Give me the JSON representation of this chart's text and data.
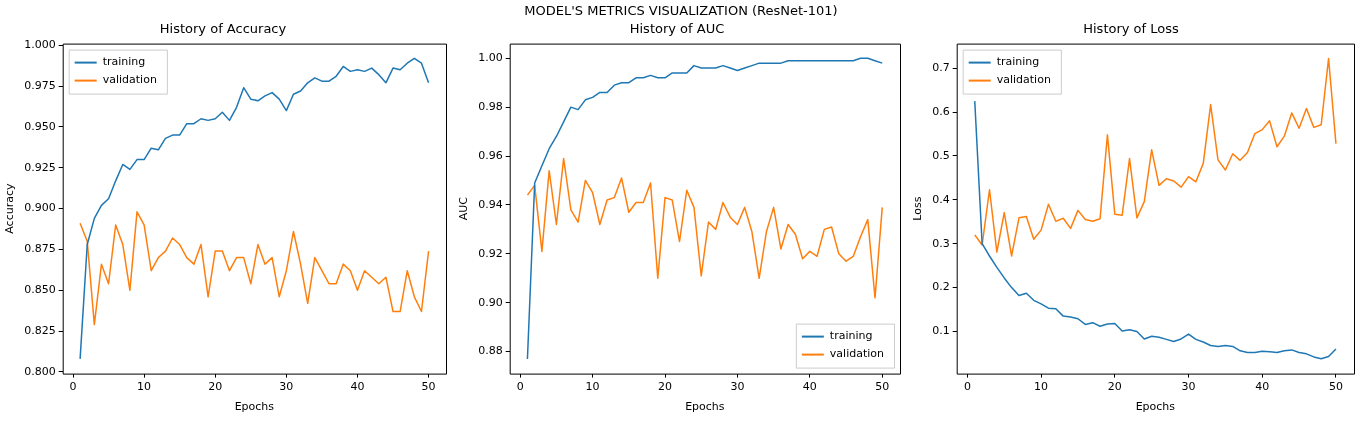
{
  "chart_data": [
    {
      "type": "line",
      "title": "History of Accuracy",
      "xlabel": "Epochs",
      "ylabel": "Accuracy",
      "annotations": [
        "MODEL'S METRICS VISUALIZATION (ResNet-101)"
      ],
      "legend": "top left",
      "grid": false,
      "x": [
        1,
        2,
        3,
        4,
        5,
        6,
        7,
        8,
        9,
        10,
        11,
        12,
        13,
        14,
        15,
        16,
        17,
        18,
        19,
        20,
        21,
        22,
        23,
        24,
        25,
        26,
        27,
        28,
        29,
        30,
        31,
        32,
        33,
        34,
        35,
        36,
        37,
        38,
        39,
        40,
        41,
        42,
        43,
        44,
        45,
        46,
        47,
        48,
        49,
        50
      ],
      "xlim": [
        -1.45,
        52.45
      ],
      "xticks": [
        0,
        10,
        20,
        30,
        40,
        50
      ],
      "ylim": [
        0.799,
        1.001
      ],
      "yticks": [
        {
          "value": 0.8,
          "label": "0.800"
        },
        {
          "value": 0.825,
          "label": "0.825"
        },
        {
          "value": 0.85,
          "label": "0.850"
        },
        {
          "value": 0.875,
          "label": "0.875"
        },
        {
          "value": 0.9,
          "label": "0.900"
        },
        {
          "value": 0.925,
          "label": "0.925"
        },
        {
          "value": 0.95,
          "label": "0.950"
        },
        {
          "value": 0.975,
          "label": "0.975"
        },
        {
          "value": 1.0,
          "label": "1.000"
        }
      ],
      "series": [
        {
          "name": "training",
          "color": "#1f77b4",
          "values": [
            0.808,
            0.878,
            0.894,
            0.902,
            0.906,
            0.917,
            0.927,
            0.924,
            0.93,
            0.93,
            0.937,
            0.936,
            0.943,
            0.945,
            0.945,
            0.952,
            0.952,
            0.955,
            0.954,
            0.955,
            0.959,
            0.954,
            0.962,
            0.974,
            0.967,
            0.966,
            0.969,
            0.971,
            0.967,
            0.96,
            0.97,
            0.972,
            0.977,
            0.98,
            0.978,
            0.978,
            0.981,
            0.987,
            0.984,
            0.985,
            0.984,
            0.986,
            0.982,
            0.977,
            0.986,
            0.985,
            0.989,
            0.992,
            0.989,
            0.977
          ]
        },
        {
          "name": "validation",
          "color": "#ff7f0e",
          "values": [
            0.891,
            0.88,
            0.829,
            0.866,
            0.854,
            0.89,
            0.878,
            0.85,
            0.898,
            0.89,
            0.862,
            0.87,
            0.874,
            0.882,
            0.878,
            0.87,
            0.866,
            0.878,
            0.846,
            0.874,
            0.874,
            0.862,
            0.87,
            0.87,
            0.854,
            0.878,
            0.866,
            0.87,
            0.846,
            0.862,
            0.886,
            0.866,
            0.842,
            0.87,
            0.862,
            0.854,
            0.854,
            0.866,
            0.862,
            0.85,
            0.862,
            0.858,
            0.854,
            0.858,
            0.837,
            0.837,
            0.862,
            0.846,
            0.837,
            0.874
          ]
        }
      ]
    },
    {
      "type": "line",
      "title": "History of AUC",
      "xlabel": "Epochs",
      "ylabel": "AUC",
      "legend": "bottom right",
      "grid": false,
      "x": [
        1,
        2,
        3,
        4,
        5,
        6,
        7,
        8,
        9,
        10,
        11,
        12,
        13,
        14,
        15,
        16,
        17,
        18,
        19,
        20,
        21,
        22,
        23,
        24,
        25,
        26,
        27,
        28,
        29,
        30,
        31,
        32,
        33,
        34,
        35,
        36,
        37,
        38,
        39,
        40,
        41,
        42,
        43,
        44,
        45,
        46,
        47,
        48,
        49,
        50
      ],
      "xlim": [
        -1.45,
        52.45
      ],
      "xticks": [
        0,
        10,
        20,
        30,
        40,
        50
      ],
      "ylim": [
        0.871,
        1.006
      ],
      "yticks": [
        {
          "value": 0.88,
          "label": "0.88"
        },
        {
          "value": 0.9,
          "label": "0.90"
        },
        {
          "value": 0.92,
          "label": "0.92"
        },
        {
          "value": 0.94,
          "label": "0.94"
        },
        {
          "value": 0.96,
          "label": "0.96"
        },
        {
          "value": 0.98,
          "label": "0.98"
        },
        {
          "value": 1.0,
          "label": "1.00"
        }
      ],
      "series": [
        {
          "name": "training",
          "color": "#1f77b4",
          "values": [
            0.877,
            0.949,
            0.956,
            0.963,
            0.968,
            0.974,
            0.98,
            0.979,
            0.983,
            0.984,
            0.986,
            0.986,
            0.989,
            0.99,
            0.99,
            0.992,
            0.992,
            0.993,
            0.992,
            0.992,
            0.994,
            0.994,
            0.994,
            0.997,
            0.996,
            0.996,
            0.996,
            0.997,
            0.996,
            0.995,
            0.996,
            0.997,
            0.998,
            0.998,
            0.998,
            0.998,
            0.999,
            0.999,
            0.999,
            0.999,
            0.999,
            0.999,
            0.999,
            0.999,
            0.999,
            0.999,
            1.0,
            1.0,
            0.999,
            0.998
          ]
        },
        {
          "name": "validation",
          "color": "#ff7f0e",
          "values": [
            0.944,
            0.948,
            0.921,
            0.954,
            0.932,
            0.959,
            0.938,
            0.933,
            0.95,
            0.945,
            0.932,
            0.942,
            0.943,
            0.951,
            0.937,
            0.941,
            0.941,
            0.949,
            0.91,
            0.943,
            0.942,
            0.925,
            0.946,
            0.939,
            0.911,
            0.933,
            0.93,
            0.941,
            0.935,
            0.932,
            0.939,
            0.929,
            0.91,
            0.929,
            0.939,
            0.922,
            0.932,
            0.928,
            0.918,
            0.921,
            0.919,
            0.93,
            0.931,
            0.92,
            0.917,
            0.919,
            0.927,
            0.934,
            0.902,
            0.939
          ]
        }
      ]
    },
    {
      "type": "line",
      "title": "History of Loss",
      "xlabel": "Epochs",
      "ylabel": "Loss",
      "legend": "top left",
      "grid": false,
      "x": [
        1,
        2,
        3,
        4,
        5,
        6,
        7,
        8,
        9,
        10,
        11,
        12,
        13,
        14,
        15,
        16,
        17,
        18,
        19,
        20,
        21,
        22,
        23,
        24,
        25,
        26,
        27,
        28,
        29,
        30,
        31,
        32,
        33,
        34,
        35,
        36,
        37,
        38,
        39,
        40,
        41,
        42,
        43,
        44,
        45,
        46,
        47,
        48,
        49,
        50
      ],
      "xlim": [
        -1.45,
        52.45
      ],
      "xticks": [
        0,
        10,
        20,
        30,
        40,
        50
      ],
      "ylim": [
        0.004,
        0.756
      ],
      "yticks": [
        0.1,
        0.2,
        0.3,
        0.4,
        0.5,
        0.6,
        0.7
      ],
      "series": [
        {
          "name": "training",
          "color": "#1f77b4",
          "values": [
            0.625,
            0.3,
            0.272,
            0.246,
            0.222,
            0.2,
            0.182,
            0.187,
            0.171,
            0.163,
            0.153,
            0.152,
            0.135,
            0.133,
            0.129,
            0.116,
            0.12,
            0.112,
            0.117,
            0.118,
            0.101,
            0.104,
            0.1,
            0.083,
            0.089,
            0.087,
            0.082,
            0.077,
            0.083,
            0.094,
            0.082,
            0.076,
            0.068,
            0.066,
            0.068,
            0.066,
            0.056,
            0.052,
            0.052,
            0.055,
            0.054,
            0.052,
            0.056,
            0.058,
            0.052,
            0.049,
            0.042,
            0.038,
            0.043,
            0.06
          ]
        },
        {
          "name": "validation",
          "color": "#ff7f0e",
          "values": [
            0.32,
            0.297,
            0.423,
            0.281,
            0.371,
            0.272,
            0.359,
            0.362,
            0.31,
            0.331,
            0.39,
            0.351,
            0.358,
            0.335,
            0.376,
            0.355,
            0.351,
            0.357,
            0.548,
            0.367,
            0.365,
            0.494,
            0.359,
            0.396,
            0.514,
            0.433,
            0.448,
            0.443,
            0.429,
            0.453,
            0.441,
            0.483,
            0.617,
            0.491,
            0.468,
            0.505,
            0.49,
            0.508,
            0.551,
            0.56,
            0.58,
            0.521,
            0.545,
            0.598,
            0.563,
            0.608,
            0.565,
            0.571,
            0.722,
            0.528
          ]
        }
      ]
    }
  ]
}
